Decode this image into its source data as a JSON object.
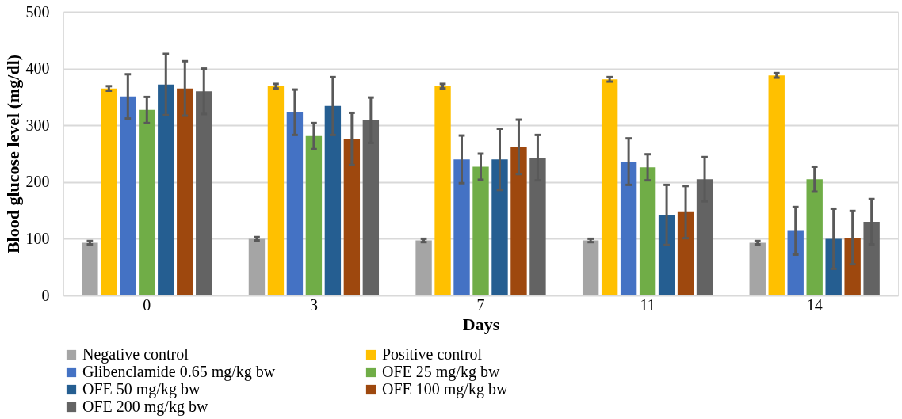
{
  "chart_data": {
    "type": "bar",
    "xlabel": "Days",
    "ylabel": "Blood glucose level (mg/dl)",
    "categories": [
      "0",
      "3",
      "7",
      "11",
      "14"
    ],
    "series": [
      {
        "name": "Negative control",
        "color": "#a5a5a5",
        "values": [
          93,
          100,
          97,
          97,
          93
        ],
        "errors": [
          3,
          3,
          3,
          3,
          3
        ]
      },
      {
        "name": "Positive control",
        "color": "#ffc000",
        "values": [
          365,
          369,
          369,
          381,
          388
        ],
        "errors": [
          4,
          4,
          4,
          4,
          4
        ]
      },
      {
        "name": "Glibenclamide 0.65 mg/kg bw",
        "color": "#4472c4",
        "values": [
          351,
          323,
          240,
          236,
          114
        ],
        "errors": [
          39,
          40,
          42,
          41,
          42
        ]
      },
      {
        "name": "OFE 25 mg/kg bw",
        "color": "#70ad47",
        "values": [
          327,
          281,
          227,
          226,
          205
        ],
        "errors": [
          23,
          23,
          23,
          23,
          22
        ]
      },
      {
        "name": "OFE 50 mg/kg bw",
        "color": "#255e91",
        "values": [
          372,
          334,
          240,
          142,
          100
        ],
        "errors": [
          54,
          51,
          54,
          53,
          53
        ]
      },
      {
        "name": "OFE 100 mg/kg bw",
        "color": "#9e480e",
        "values": [
          365,
          276,
          262,
          147,
          102
        ],
        "errors": [
          48,
          46,
          48,
          46,
          47
        ]
      },
      {
        "name": "OFE 200 mg/kg bw",
        "color": "#636363",
        "values": [
          360,
          309,
          243,
          205,
          130
        ],
        "errors": [
          40,
          40,
          40,
          39,
          40
        ]
      }
    ],
    "ylim": [
      0,
      500
    ],
    "yticks": [
      0,
      100,
      200,
      300,
      400,
      500
    ],
    "grid": "y",
    "legend": "bottom"
  }
}
